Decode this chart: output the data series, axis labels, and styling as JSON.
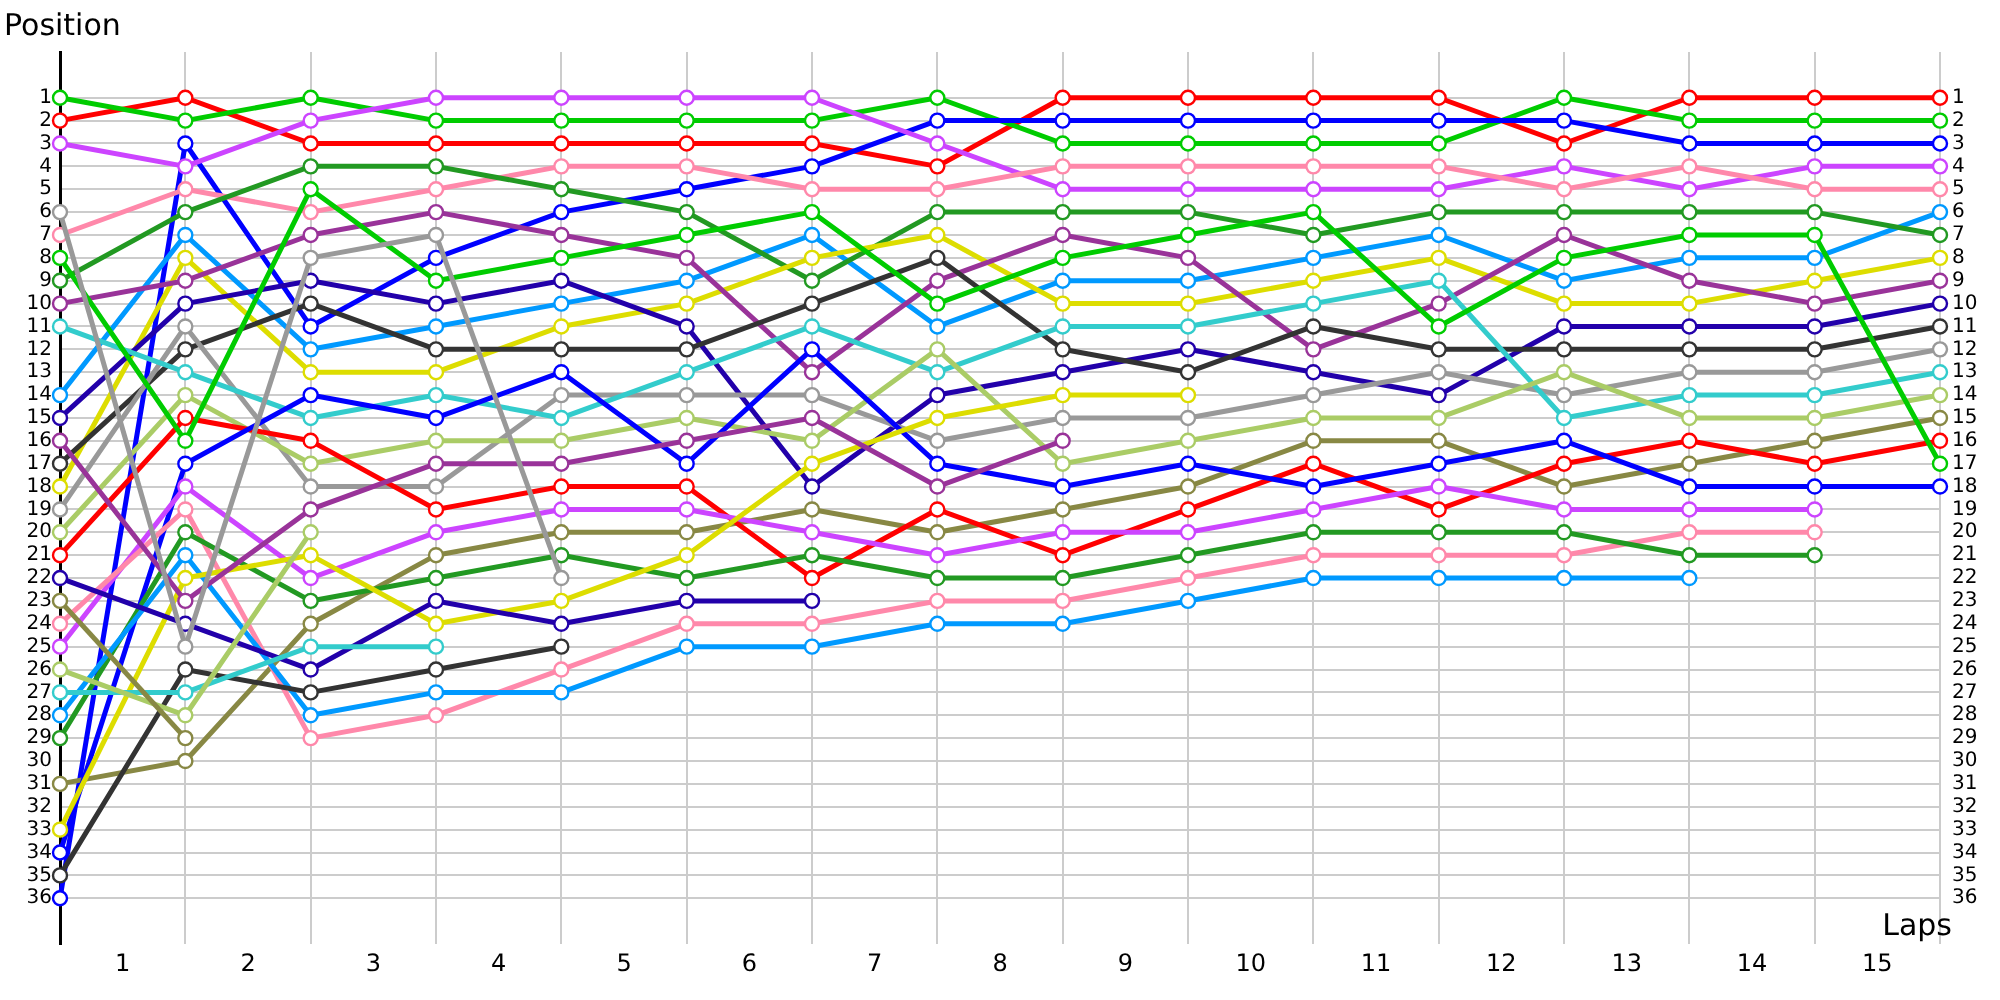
{
  "chart_data": {
    "type": "line",
    "xlabel": "Laps",
    "ylabel": "Position",
    "x": [
      0,
      1,
      2,
      3,
      4,
      5,
      6,
      7,
      8,
      9,
      10,
      11,
      12,
      13,
      14,
      15
    ],
    "xlim": [
      0,
      15
    ],
    "xticks": [
      {
        "value": 0,
        "label": null
      },
      {
        "value": 0.5,
        "label": "1"
      },
      {
        "value": 1,
        "label": null
      },
      {
        "value": 1.5,
        "label": "2"
      },
      {
        "value": 2,
        "label": null
      },
      {
        "value": 2.5,
        "label": "3"
      },
      {
        "value": 3,
        "label": null
      },
      {
        "value": 3.5,
        "label": "4"
      },
      {
        "value": 4,
        "label": null
      },
      {
        "value": 4.5,
        "label": "5"
      },
      {
        "value": 5,
        "label": null
      },
      {
        "value": 5.5,
        "label": "6"
      },
      {
        "value": 6,
        "label": null
      },
      {
        "value": 6.5,
        "label": "7"
      },
      {
        "value": 7,
        "label": null
      },
      {
        "value": 7.5,
        "label": "8"
      },
      {
        "value": 8,
        "label": null
      },
      {
        "value": 8.5,
        "label": "9"
      },
      {
        "value": 9,
        "label": null
      },
      {
        "value": 9.5,
        "label": "10"
      },
      {
        "value": 10,
        "label": null
      },
      {
        "value": 10.5,
        "label": "11"
      },
      {
        "value": 11,
        "label": null
      },
      {
        "value": 11.5,
        "label": "12"
      },
      {
        "value": 12,
        "label": null
      },
      {
        "value": 12.5,
        "label": "13"
      },
      {
        "value": 13,
        "label": null
      },
      {
        "value": 13.5,
        "label": "14"
      },
      {
        "value": 14,
        "label": null
      },
      {
        "value": 14.5,
        "label": "15"
      },
      {
        "value": 15,
        "label": null
      }
    ],
    "ylim": [
      38,
      -1
    ],
    "yticks": [
      1,
      2,
      3,
      4,
      5,
      6,
      7,
      8,
      9,
      10,
      11,
      12,
      13,
      14,
      15,
      16,
      17,
      18,
      19,
      20,
      21,
      22,
      23,
      24,
      25,
      26,
      27,
      28,
      29,
      30,
      31,
      32,
      33,
      34,
      35,
      36
    ],
    "y2lim": [
      38,
      -1
    ],
    "y2ticks": [
      1,
      2,
      3,
      4,
      5,
      6,
      7,
      8,
      9,
      10,
      11,
      12,
      13,
      14,
      15,
      16,
      17,
      18,
      19,
      20,
      21,
      22,
      23,
      24,
      25,
      26,
      27,
      28,
      29,
      30,
      31,
      32,
      33,
      34,
      35,
      36
    ],
    "grid": true,
    "legend": false,
    "marker": "circle",
    "line_style": "solid",
    "series": [
      {
        "color": "#888844",
        "values": [
          23,
          29,
          null,
          null,
          null,
          null,
          null,
          null,
          null,
          null,
          null,
          null,
          null,
          null,
          null,
          null
        ]
      },
      {
        "color": "#aacc66",
        "values": [
          26,
          28,
          20,
          null,
          null,
          null,
          null,
          null,
          null,
          null,
          null,
          null,
          null,
          null,
          null,
          null
        ]
      },
      {
        "color": "#33cccc",
        "values": [
          27,
          27,
          25,
          25,
          null,
          null,
          null,
          null,
          null,
          null,
          null,
          null,
          null,
          null,
          null,
          null
        ]
      },
      {
        "color": "#333333",
        "values": [
          35,
          26,
          27,
          26,
          25,
          null,
          null,
          null,
          null,
          null,
          null,
          null,
          null,
          null,
          null,
          null
        ]
      },
      {
        "color": "#999999",
        "values": [
          6,
          25,
          8,
          7,
          22,
          null,
          null,
          null,
          null,
          null,
          null,
          null,
          null,
          null,
          null,
          null
        ]
      },
      {
        "color": "#2200aa",
        "values": [
          22,
          24,
          26,
          23,
          24,
          23,
          23,
          null,
          null,
          null,
          null,
          null,
          null,
          null,
          null,
          null
        ]
      },
      {
        "color": "#993399",
        "values": [
          16,
          23,
          19,
          17,
          17,
          16,
          15,
          18,
          16,
          null,
          null,
          null,
          null,
          null,
          null,
          null
        ]
      },
      {
        "color": "#dddd00",
        "values": [
          33,
          22,
          21,
          24,
          23,
          21,
          17,
          15,
          14,
          14,
          null,
          null,
          null,
          null,
          null,
          null
        ]
      },
      {
        "color": "#0099ff",
        "values": [
          28,
          21,
          28,
          27,
          27,
          25,
          25,
          24,
          24,
          23,
          22,
          22,
          22,
          22,
          null,
          null
        ]
      },
      {
        "color": "#229922",
        "values": [
          29,
          20,
          23,
          22,
          21,
          22,
          21,
          22,
          22,
          21,
          20,
          20,
          20,
          21,
          21,
          null
        ]
      },
      {
        "color": "#ff88aa",
        "values": [
          24,
          19,
          29,
          28,
          26,
          24,
          24,
          23,
          23,
          22,
          21,
          21,
          21,
          20,
          20,
          null
        ]
      },
      {
        "color": "#cc44ff",
        "values": [
          25,
          18,
          22,
          20,
          19,
          19,
          20,
          21,
          20,
          20,
          19,
          18,
          19,
          19,
          19,
          null
        ]
      },
      {
        "color": "#0000ff",
        "values": [
          34,
          17,
          14,
          15,
          13,
          17,
          12,
          17,
          18,
          17,
          18,
          17,
          16,
          18,
          18,
          18
        ]
      },
      {
        "color": "#00cc00",
        "values": [
          8,
          16,
          5,
          9,
          8,
          7,
          6,
          10,
          8,
          7,
          6,
          11,
          8,
          7,
          7,
          17
        ]
      },
      {
        "color": "#ff0000",
        "values": [
          21,
          15,
          16,
          19,
          18,
          18,
          22,
          19,
          21,
          19,
          17,
          19,
          17,
          16,
          17,
          16
        ]
      },
      {
        "color": "#888844",
        "values": [
          31,
          30,
          24,
          21,
          20,
          20,
          19,
          20,
          19,
          18,
          16,
          16,
          18,
          17,
          16,
          15
        ]
      },
      {
        "color": "#aacc66",
        "values": [
          20,
          14,
          17,
          16,
          16,
          15,
          16,
          12,
          17,
          16,
          15,
          15,
          13,
          15,
          15,
          14
        ]
      },
      {
        "color": "#33cccc",
        "values": [
          11,
          13,
          15,
          14,
          15,
          13,
          11,
          13,
          11,
          11,
          10,
          9,
          15,
          14,
          14,
          13
        ]
      },
      {
        "color": "#999999",
        "values": [
          19,
          11,
          18,
          18,
          14,
          14,
          14,
          16,
          15,
          15,
          14,
          13,
          14,
          13,
          13,
          12
        ]
      },
      {
        "color": "#333333",
        "values": [
          17,
          12,
          10,
          12,
          12,
          12,
          10,
          8,
          12,
          13,
          11,
          12,
          12,
          12,
          12,
          11
        ]
      },
      {
        "color": "#2200aa",
        "values": [
          15,
          10,
          9,
          10,
          9,
          11,
          18,
          14,
          13,
          12,
          13,
          14,
          11,
          11,
          11,
          10
        ]
      },
      {
        "color": "#993399",
        "values": [
          10,
          9,
          7,
          6,
          7,
          8,
          13,
          9,
          7,
          8,
          12,
          10,
          7,
          9,
          10,
          9
        ]
      },
      {
        "color": "#dddd00",
        "values": [
          18,
          8,
          13,
          13,
          11,
          10,
          8,
          7,
          10,
          10,
          9,
          8,
          10,
          10,
          9,
          8
        ]
      },
      {
        "color": "#229922",
        "values": [
          9,
          6,
          4,
          4,
          5,
          6,
          9,
          6,
          6,
          6,
          7,
          6,
          6,
          6,
          6,
          7
        ]
      },
      {
        "color": "#0099ff",
        "values": [
          14,
          7,
          12,
          11,
          10,
          9,
          7,
          11,
          9,
          9,
          8,
          7,
          9,
          8,
          8,
          6
        ]
      },
      {
        "color": "#ff88aa",
        "values": [
          7,
          5,
          6,
          5,
          4,
          4,
          5,
          5,
          4,
          4,
          4,
          4,
          5,
          4,
          5,
          5
        ]
      },
      {
        "color": "#cc44ff",
        "values": [
          3,
          4,
          2,
          1,
          1,
          1,
          1,
          3,
          5,
          5,
          5,
          5,
          4,
          5,
          4,
          4
        ]
      },
      {
        "color": "#0000ff",
        "values": [
          36,
          3,
          11,
          8,
          6,
          5,
          4,
          2,
          2,
          2,
          2,
          2,
          2,
          3,
          3,
          3
        ]
      },
      {
        "color": "#00cc00",
        "values": [
          1,
          2,
          1,
          2,
          2,
          2,
          2,
          1,
          3,
          3,
          3,
          3,
          1,
          2,
          2,
          2
        ]
      },
      {
        "color": "#ff0000",
        "values": [
          2,
          1,
          3,
          3,
          3,
          3,
          3,
          4,
          1,
          1,
          1,
          1,
          3,
          1,
          1,
          1
        ]
      }
    ]
  }
}
